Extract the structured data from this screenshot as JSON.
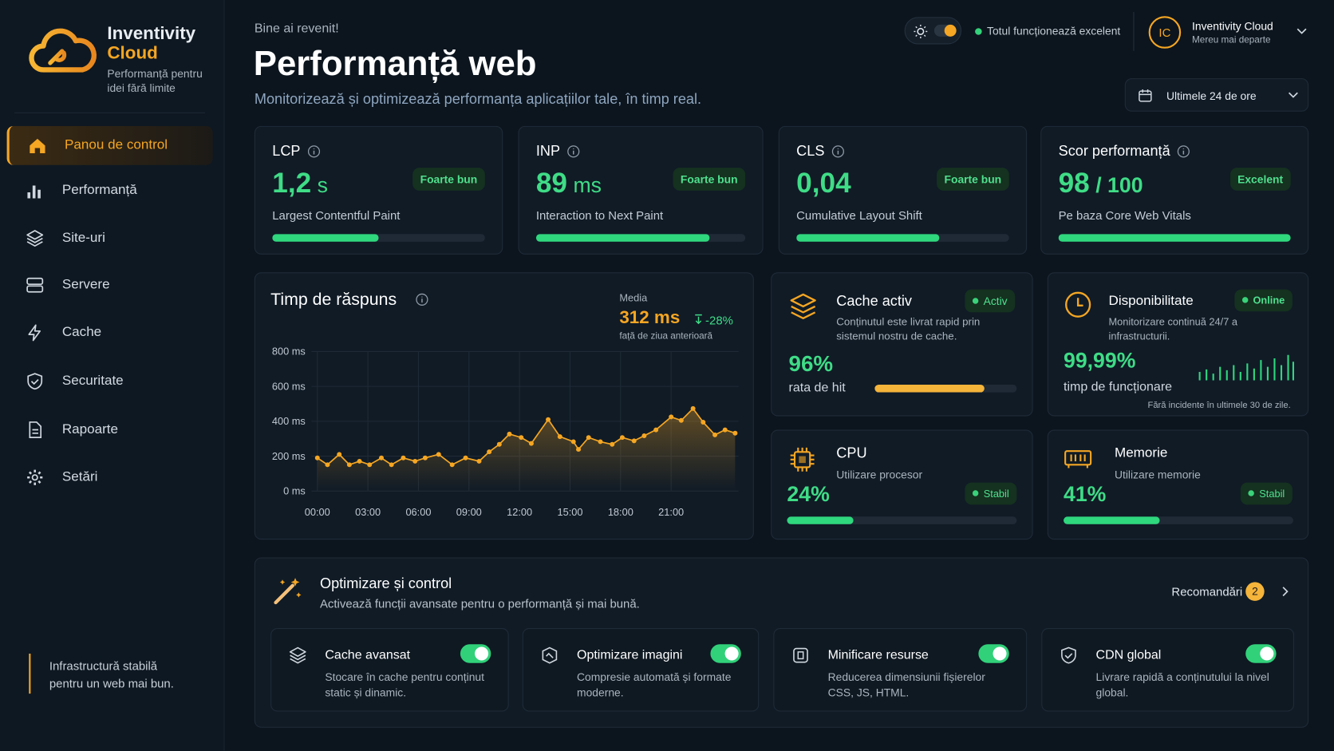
{
  "brand": {
    "name": "Inventivity",
    "name_accent": "Cloud",
    "tagline": "Performanță pentru idei fără limite"
  },
  "nav": [
    "Panou de control",
    "Performanță",
    "Site-uri",
    "Servere",
    "Cache",
    "Securitate",
    "Rapoarte",
    "Setări"
  ],
  "nav_active": 0,
  "sidebar_note": "Infrastructură stabilă pentru un web mai bun.",
  "header": {
    "greeting": "Bine ai revenit!",
    "title": "Performanță web",
    "subtitle": "Monitorizează și optimizează performanța aplicațiilor tale, în timp real.",
    "status": "Totul funcționează excelent",
    "user": {
      "initials": "IC",
      "name": "Inventivity Cloud",
      "subtitle": "Mereu mai departe"
    },
    "range": "Ultimele 24 de ore"
  },
  "metrics": [
    {
      "label": "LCP",
      "value": "1,2",
      "unit": "s",
      "badge": "Foarte bun",
      "description": "Largest Contentful Paint",
      "bar": 50
    },
    {
      "label": "INP",
      "value": "89",
      "unit": "ms",
      "badge": "Foarte bun",
      "description": "Interaction to Next Paint",
      "bar": 83
    },
    {
      "label": "CLS",
      "value": "0,04",
      "badge": "Foarte bun",
      "description": "Cumulative Layout Shift",
      "bar": 67
    },
    {
      "label": "Scor performanță",
      "value": "98",
      "unit": "/ 100",
      "badge": "Excelent",
      "description": "Pe baza Core Web Vitals",
      "bar": 100
    }
  ],
  "response_chart": {
    "type": "line",
    "title": "Timp de răspuns",
    "average_label": "Media",
    "average": "312 ms",
    "change": "-28%",
    "change_note": "față de ziua anterioară",
    "color": "#f5a623",
    "x": [
      0,
      0.6,
      1.3,
      1.9,
      2.5,
      3.1,
      3.8,
      4.4,
      5.1,
      5.8,
      6.4,
      7.2,
      8.0,
      8.8,
      9.6,
      10.2,
      10.8,
      11.4,
      12.1,
      12.7,
      13.7,
      14.4,
      15.2,
      15.5,
      16.1,
      16.8,
      17.5,
      18.1,
      18.8,
      19.4,
      20.1,
      21.0,
      21.6,
      22.3,
      22.9,
      23.6,
      24.2,
      24.8
    ],
    "values": [
      190,
      151,
      210,
      151,
      171,
      151,
      190,
      151,
      190,
      171,
      190,
      210,
      151,
      190,
      171,
      225,
      268,
      327,
      307,
      273,
      410,
      312,
      283,
      239,
      307,
      283,
      268,
      307,
      288,
      317,
      351,
      425,
      405,
      473,
      395,
      322,
      351,
      332
    ],
    "xlim": [
      0,
      25
    ],
    "ylim": [
      0,
      800
    ],
    "yticks": [
      {
        "value": 0,
        "label": "0 ms"
      },
      {
        "value": 200,
        "label": "200 ms"
      },
      {
        "value": 400,
        "label": "400 ms"
      },
      {
        "value": 600,
        "label": "600 ms"
      },
      {
        "value": 800,
        "label": "800 ms"
      }
    ],
    "xticks": [
      {
        "value": 0,
        "label": "00:00"
      },
      {
        "value": 3,
        "label": "03:00"
      },
      {
        "value": 6,
        "label": "06:00"
      },
      {
        "value": 9,
        "label": "09:00"
      },
      {
        "value": 12,
        "label": "12:00"
      },
      {
        "value": 15,
        "label": "15:00"
      },
      {
        "value": 18,
        "label": "18:00"
      },
      {
        "value": 21,
        "label": "21:00"
      }
    ],
    "grid": true
  },
  "cache": {
    "title": "Cache activ",
    "badge": "Activ",
    "description": "Conținutul este livrat rapid prin sistemul nostru de cache.",
    "value": "96%",
    "value_label": "rata de hit",
    "bar": 77
  },
  "availability": {
    "title": "Disponibilitate",
    "badge": "Online",
    "description": "Monitorizare continuă 24/7 a infrastructurii.",
    "value": "99,99%",
    "value_label": "timp de funcționare",
    "note": "Fără incidente în ultimele 30 de zile."
  },
  "cpu": {
    "title": "CPU",
    "description": "Utilizare procesor",
    "value": "24%",
    "badge": "Stabil",
    "bar": 29
  },
  "memory": {
    "title": "Memorie",
    "description": "Utilizare memorie",
    "value": "41%",
    "badge": "Stabil",
    "bar": 42
  },
  "optimization": {
    "title": "Optimizare și control",
    "subtitle": "Activează funcții avansate pentru o performanță și mai bună.",
    "recommendations_label": "Recomandări",
    "recommendations_count": 2,
    "features": [
      {
        "title": "Cache avansat",
        "description": "Stocare în cache pentru conținut static și dinamic.",
        "enabled": true
      },
      {
        "title": "Optimizare imagini",
        "description": "Compresie automată și formate moderne.",
        "enabled": true
      },
      {
        "title": "Minificare resurse",
        "description": "Reducerea dimensiunii fișierelor CSS, JS, HTML.",
        "enabled": true
      },
      {
        "title": "CDN global",
        "description": "Livrare rapidă a conținutului la nivel global.",
        "enabled": true
      }
    ]
  }
}
